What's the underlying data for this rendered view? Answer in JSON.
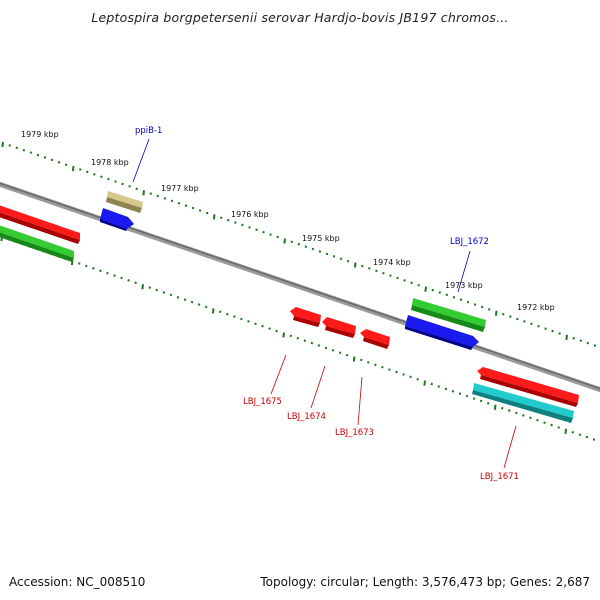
{
  "header": {
    "title": "Leptospira borgpetersenii serovar Hardjo-bovis JB197 chromos..."
  },
  "ruler": {
    "tick_color": "#1a7a1a",
    "labels": [
      "1979 kbp",
      "1978 kbp",
      "1977 kbp",
      "1976 kbp",
      "1975 kbp",
      "1974 kbp",
      "1973 kbp",
      "1972 kbp"
    ]
  },
  "genes": {
    "plus_strand": [
      {
        "label": "ppiB-1",
        "color": "#0000cc"
      },
      {
        "label": "LBJ_1672",
        "color": "#0000cc"
      }
    ],
    "minus_strand": [
      {
        "label": "LBJ_1675",
        "color": "#cc0000"
      },
      {
        "label": "LBJ_1674",
        "color": "#cc0000"
      },
      {
        "label": "LBJ_1673",
        "color": "#cc0000"
      },
      {
        "label": "LBJ_1671",
        "color": "#cc0000"
      }
    ]
  },
  "colors": {
    "red": "#ff1a1a",
    "green": "#33cc33",
    "blue": "#1a1aee",
    "tan": "#c8b878",
    "cyan": "#22cccc",
    "backbone": "#888888"
  },
  "footer": {
    "accession": "Accession: NC_008510",
    "summary": "Topology: circular; Length: 3,576,473 bp; Genes: 2,687"
  }
}
